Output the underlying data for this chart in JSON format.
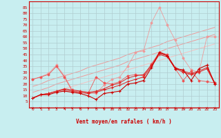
{
  "xlabel": "Vent moyen/en rafales ( km/h )",
  "bg_color": "#c8eef0",
  "grid_color": "#b0ccd0",
  "x": [
    0,
    1,
    2,
    3,
    4,
    5,
    6,
    7,
    8,
    9,
    10,
    11,
    12,
    13,
    14,
    15,
    16,
    17,
    18,
    19,
    20,
    21,
    22,
    23
  ],
  "line_dark1": [
    8,
    11,
    11,
    13,
    14,
    13,
    12,
    10,
    7,
    12,
    13,
    14,
    20,
    21,
    23,
    34,
    47,
    44,
    33,
    32,
    23,
    33,
    36,
    20
  ],
  "line_med1": [
    8,
    11,
    12,
    14,
    15,
    14,
    13,
    12,
    13,
    15,
    17,
    19,
    22,
    24,
    26,
    35,
    45,
    43,
    33,
    30,
    28,
    30,
    33,
    20
  ],
  "line_med2": [
    8,
    11,
    12,
    14,
    16,
    15,
    14,
    13,
    14,
    16,
    19,
    21,
    25,
    27,
    28,
    36,
    46,
    44,
    34,
    31,
    29,
    31,
    34,
    21
  ],
  "line_light1": [
    24,
    26,
    29,
    36,
    27,
    15,
    14,
    13,
    12,
    19,
    24,
    26,
    35,
    47,
    48,
    72,
    85,
    70,
    57,
    42,
    32,
    30,
    60,
    60
  ],
  "line_light2": [
    24,
    26,
    28,
    35,
    26,
    14,
    13,
    12,
    26,
    21,
    20,
    22,
    27,
    28,
    27,
    37,
    47,
    45,
    33,
    23,
    31,
    23,
    22,
    21
  ],
  "trend1": [
    8,
    10,
    12,
    14,
    16,
    18,
    20,
    22,
    24,
    26,
    28,
    30,
    32,
    34,
    36,
    38,
    40,
    42,
    44,
    46,
    48,
    50,
    52,
    54
  ],
  "trend2": [
    13,
    15,
    17,
    20,
    22,
    24,
    26,
    28,
    30,
    32,
    34,
    36,
    39,
    41,
    43,
    45,
    47,
    50,
    52,
    54,
    56,
    58,
    60,
    62
  ],
  "trend3": [
    18,
    20,
    23,
    25,
    27,
    29,
    31,
    34,
    36,
    38,
    40,
    42,
    45,
    47,
    49,
    51,
    53,
    56,
    58,
    60,
    62,
    64,
    66,
    68
  ],
  "ylim": [
    0,
    90
  ],
  "yticks": [
    5,
    10,
    15,
    20,
    25,
    30,
    35,
    40,
    45,
    50,
    55,
    60,
    65,
    70,
    75,
    80,
    85
  ],
  "xlim": [
    -0.5,
    23.5
  ],
  "xticks": [
    0,
    1,
    2,
    3,
    4,
    5,
    6,
    7,
    8,
    9,
    10,
    11,
    12,
    13,
    14,
    15,
    16,
    17,
    18,
    19,
    20,
    21,
    22,
    23
  ],
  "color_darkred": "#cc0000",
  "color_red": "#dd2222",
  "color_midred": "#ee5555",
  "color_lightred": "#ee9999",
  "color_palered": "#f5c0c0",
  "color_palelight": "#ffdddd"
}
